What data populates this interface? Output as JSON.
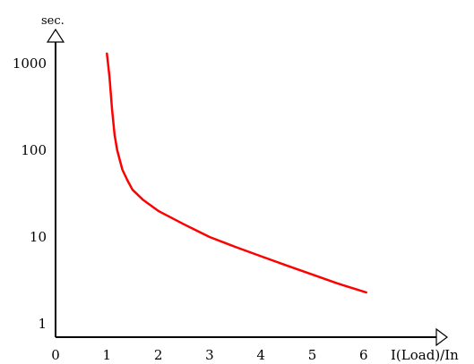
{
  "chart_data": {
    "type": "line",
    "ylabel": "sec.",
    "xlabel": "I(Load)/In",
    "xlim": [
      0,
      6
    ],
    "ylim": [
      1,
      1000
    ],
    "yscale": "log",
    "xticks": [
      "0",
      "1",
      "2",
      "3",
      "4",
      "5",
      "6"
    ],
    "yticks": [
      "1",
      "10",
      "100",
      "1000"
    ],
    "grid": false,
    "series": [
      {
        "color": "#ff0000",
        "x": [
          1.0,
          1.05,
          1.1,
          1.15,
          1.2,
          1.3,
          1.4,
          1.5,
          1.7,
          2.0,
          2.5,
          3.0,
          3.5,
          4.0,
          4.5,
          5.0,
          5.5,
          6.05
        ],
        "y": [
          1300,
          700,
          300,
          150,
          100,
          60,
          45,
          35,
          27,
          20,
          14,
          10,
          7.7,
          6.0,
          4.7,
          3.7,
          2.9,
          2.3
        ]
      }
    ]
  }
}
